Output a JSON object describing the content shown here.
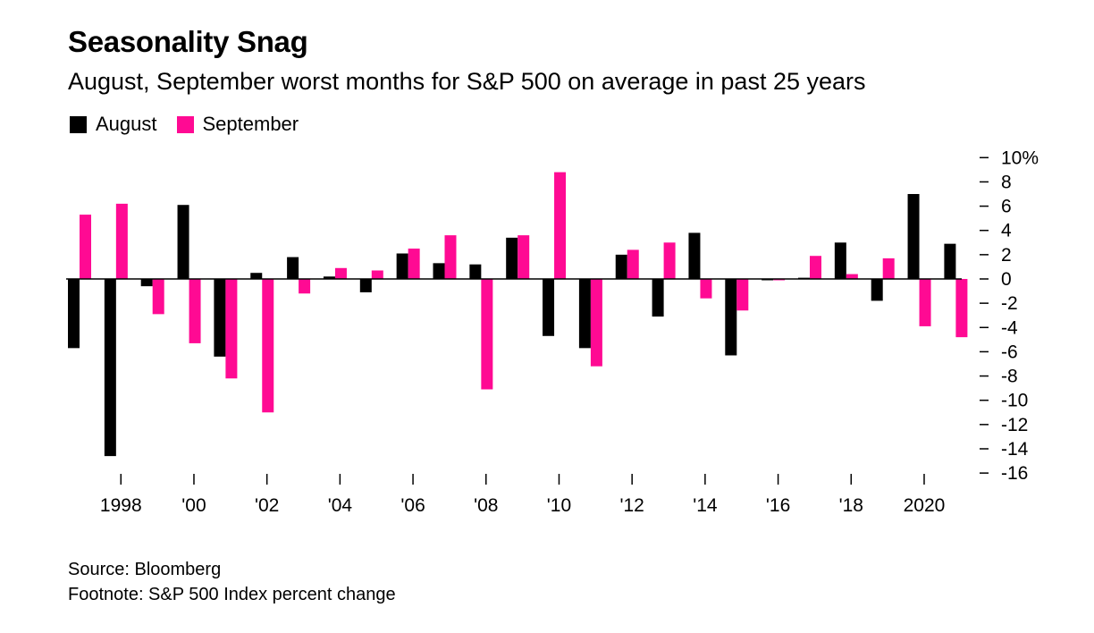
{
  "title": "Seasonality Snag",
  "subtitle": "August, September worst months for S&P 500 on average in past 25 years",
  "source": "Source: Bloomberg",
  "footnote": "Footnote: S&P 500 Index percent change",
  "colors": {
    "august": "#000000",
    "september": "#ff0a93",
    "axis": "#000000"
  },
  "chart_data": {
    "type": "bar",
    "x": [
      1997,
      1998,
      1999,
      2000,
      2001,
      2002,
      2003,
      2004,
      2005,
      2006,
      2007,
      2008,
      2009,
      2010,
      2011,
      2012,
      2013,
      2014,
      2015,
      2016,
      2017,
      2018,
      2019,
      2020,
      2021
    ],
    "series": [
      {
        "name": "August",
        "color": "#000000",
        "values": [
          -5.7,
          -14.6,
          -0.6,
          6.1,
          -6.4,
          0.5,
          1.8,
          0.2,
          -1.1,
          2.1,
          1.3,
          1.2,
          3.4,
          -4.7,
          -5.7,
          2.0,
          -3.1,
          3.8,
          -6.3,
          -0.1,
          0.1,
          3.0,
          -1.8,
          7.0,
          2.9
        ]
      },
      {
        "name": "September",
        "color": "#ff0a93",
        "values": [
          5.3,
          6.2,
          -2.9,
          -5.3,
          -8.2,
          -11.0,
          -1.2,
          0.9,
          0.7,
          2.5,
          3.6,
          -9.1,
          3.6,
          8.8,
          -7.2,
          2.4,
          3.0,
          -1.6,
          -2.6,
          -0.1,
          1.9,
          0.4,
          1.7,
          -3.9,
          -4.8
        ]
      }
    ],
    "xticks": [
      {
        "year": 1998,
        "label": "1998"
      },
      {
        "year": 2000,
        "label": "'00"
      },
      {
        "year": 2002,
        "label": "'02"
      },
      {
        "year": 2004,
        "label": "'04"
      },
      {
        "year": 2006,
        "label": "'06"
      },
      {
        "year": 2008,
        "label": "'08"
      },
      {
        "year": 2010,
        "label": "'10"
      },
      {
        "year": 2012,
        "label": "'12"
      },
      {
        "year": 2014,
        "label": "'14"
      },
      {
        "year": 2016,
        "label": "'16"
      },
      {
        "year": 2018,
        "label": "'18"
      },
      {
        "year": 2020,
        "label": "2020"
      }
    ],
    "yticks": [
      {
        "value": 10,
        "label": "10%"
      },
      {
        "value": 8,
        "label": "8"
      },
      {
        "value": 6,
        "label": "6"
      },
      {
        "value": 4,
        "label": "4"
      },
      {
        "value": 2,
        "label": "2"
      },
      {
        "value": 0,
        "label": "0"
      },
      {
        "value": -2,
        "label": "-2"
      },
      {
        "value": -4,
        "label": "-4"
      },
      {
        "value": -6,
        "label": "-6"
      },
      {
        "value": -8,
        "label": "-8"
      },
      {
        "value": -10,
        "label": "-10"
      },
      {
        "value": -12,
        "label": "-12"
      },
      {
        "value": -14,
        "label": "-14"
      },
      {
        "value": -16,
        "label": "-16"
      }
    ],
    "ylim": [
      -16,
      10
    ],
    "y_axis_position": "right",
    "grid": false,
    "legend_position": "top-left"
  }
}
